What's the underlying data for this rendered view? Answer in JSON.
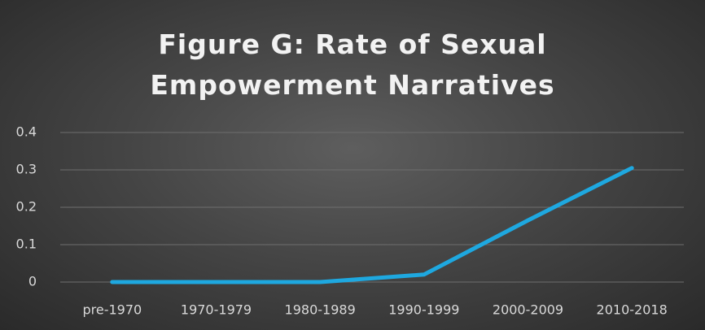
{
  "chart_data": {
    "type": "line",
    "title": "Figure G: Rate of Sexual Empowerment Narratives",
    "categories": [
      "pre-1970",
      "1970-1979",
      "1980-1989",
      "1990-1999",
      "2000-2009",
      "2010-2018"
    ],
    "series": [
      {
        "name": "Rate",
        "color": "#1ea8e0",
        "values": [
          0,
          0,
          0,
          0.02,
          0.165,
          0.305
        ]
      }
    ],
    "ylim": [
      0,
      0.4
    ],
    "yticks": [
      0,
      0.1,
      0.2,
      0.3,
      0.4
    ],
    "grid": true
  }
}
